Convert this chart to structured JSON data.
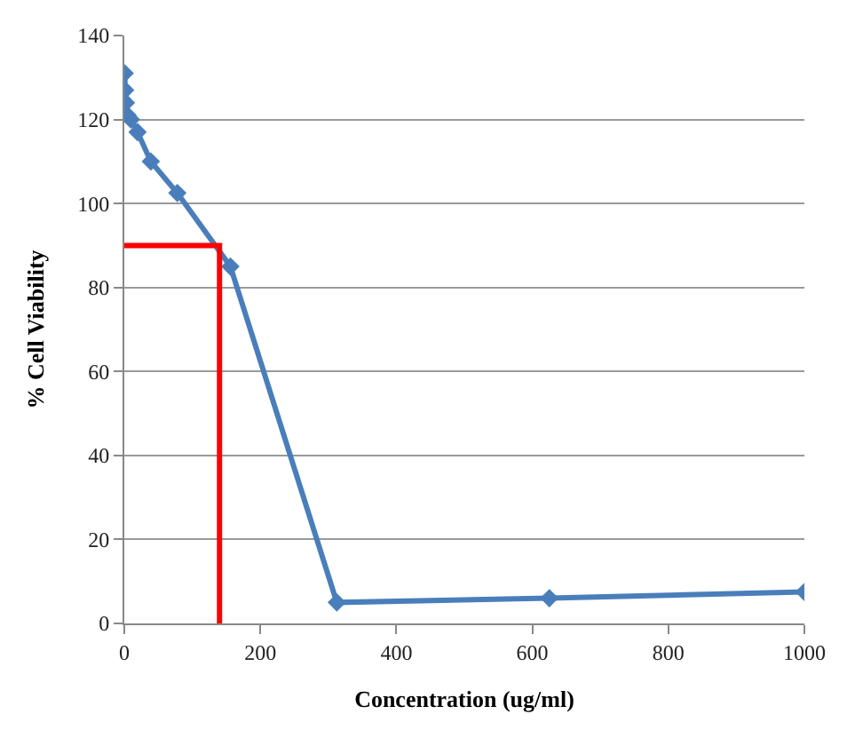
{
  "chart_data": {
    "type": "line",
    "xlabel": "Concentration (ug/ml)",
    "ylabel": "% Cell Viability",
    "series": [
      {
        "color": "#4a7ebb",
        "x": [
          0.61,
          1.22,
          2.44,
          4.88,
          9.77,
          19.5,
          39,
          78,
          156,
          312.5,
          625,
          1000
        ],
        "values": [
          131,
          127,
          124,
          121,
          120,
          117,
          110,
          102.5,
          85,
          5,
          6,
          7.5
        ],
        "marker": "diamond"
      },
      {
        "color": "#ff0000",
        "x": [
          0,
          140,
          140
        ],
        "values": [
          90,
          90,
          0
        ],
        "marker": "none"
      }
    ],
    "xlim": [
      0,
      1000
    ],
    "xticks": [
      0,
      200,
      400,
      600,
      800,
      1000
    ],
    "ylim": [
      0,
      140
    ],
    "yticks": [
      0,
      20,
      40,
      60,
      80,
      100,
      120,
      140
    ],
    "grid": "y",
    "line_style": "solid"
  }
}
